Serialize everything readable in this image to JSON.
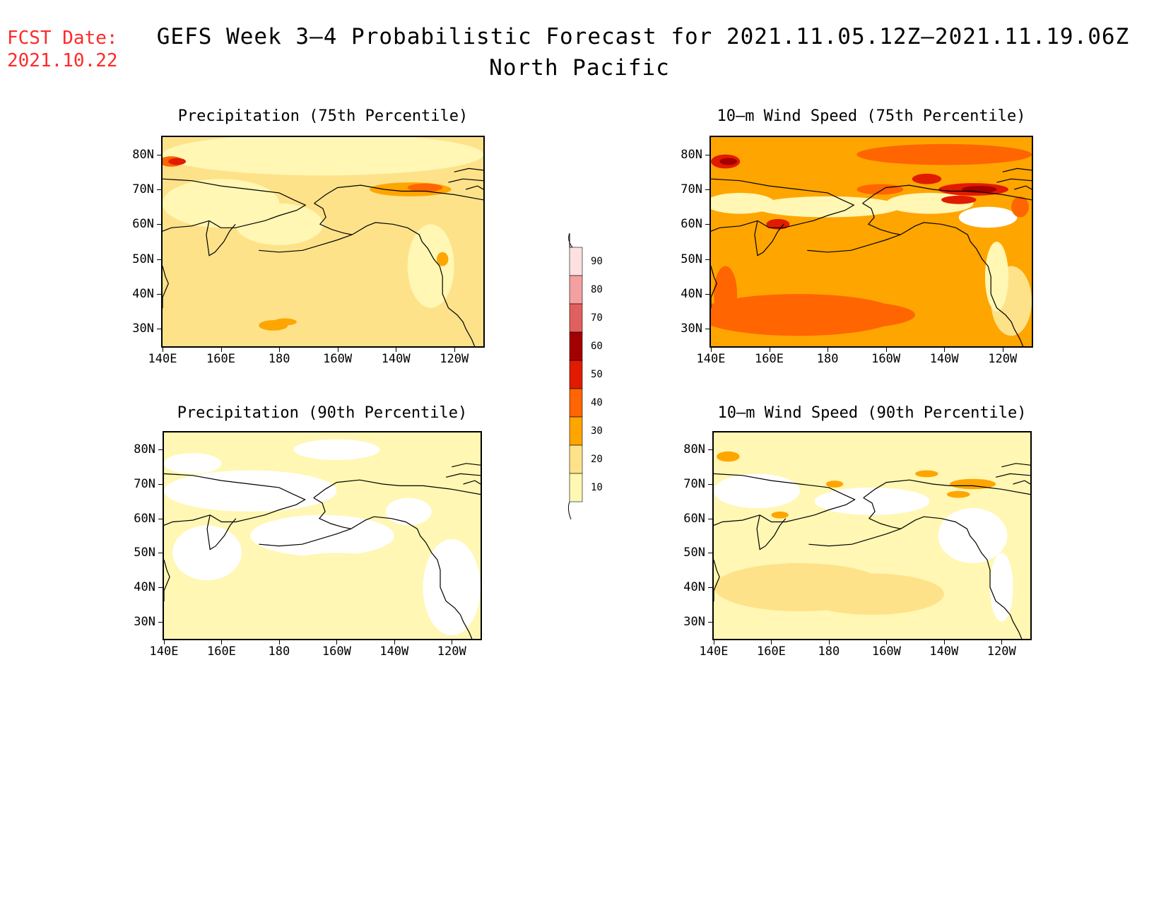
{
  "header": {
    "fcst_label": "FCST Date:",
    "fcst_date": "2021.10.22",
    "title": "GEFS Week 3–4 Probabilistic Forecast for 2021.11.05.12Z–2021.11.19.06Z",
    "subtitle": "North Pacific"
  },
  "colors": {
    "fill": [
      "#ffffff",
      "#fff7b3",
      "#fde28a",
      "#ffa500",
      "#ff6500",
      "#e01b00",
      "#a40000",
      "#e06060",
      "#f4a0a0",
      "#ffe0e0"
    ],
    "coast": "#000000",
    "header_red": "#ff2a2a"
  },
  "axes": {
    "lat_labels": [
      "80N",
      "70N",
      "60N",
      "50N",
      "40N",
      "30N"
    ],
    "lon_labels": [
      "140E",
      "160E",
      "180",
      "160W",
      "140W",
      "120W"
    ],
    "lat_range": [
      25,
      85
    ],
    "lon_range": [
      140,
      250
    ]
  },
  "colorbar": {
    "levels": [
      10,
      20,
      30,
      40,
      50,
      60,
      70,
      80,
      90
    ],
    "labels": [
      "90",
      "80",
      "70",
      "60",
      "50",
      "40",
      "30",
      "20",
      "10"
    ]
  },
  "panels": [
    {
      "title": "Precipitation (75th Percentile)",
      "base_level": 2,
      "variant": "precip75"
    },
    {
      "title": "10–m Wind Speed (75th Percentile)",
      "base_level": 3,
      "variant": "wind75"
    },
    {
      "title": "Precipitation (90th Percentile)",
      "base_level": 1,
      "variant": "precip90"
    },
    {
      "title": "10–m Wind Speed (90th Percentile)",
      "base_level": 1,
      "variant": "wind90"
    }
  ]
}
